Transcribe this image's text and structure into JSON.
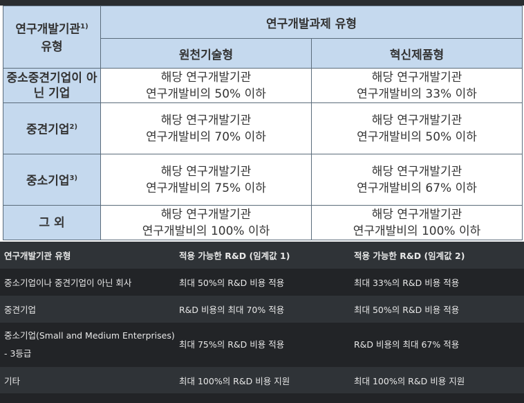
{
  "image_table": {
    "corner_header": "연구개발기관",
    "corner_header_sup": "1)",
    "corner_header_line2": "유형",
    "group_header": "연구개발과제 유형",
    "col_headers": [
      "원천기술형",
      "혁신제품형"
    ],
    "rows": [
      {
        "label": "중소중견기업이 아닌 기업",
        "sup": "",
        "cells": [
          [
            "해당 연구개발기관",
            "연구개발비의 50% 이하"
          ],
          [
            "해당 연구개발기관",
            "연구개발비의 33% 이하"
          ]
        ]
      },
      {
        "label": "중견기업",
        "sup": "2)",
        "cells": [
          [
            "해당 연구개발기관",
            "연구개발비의 70% 이하"
          ],
          [
            "해당 연구개발기관",
            "연구개발비의 50% 이하"
          ]
        ]
      },
      {
        "label": "중소기업",
        "sup": "3)",
        "cells": [
          [
            "해당 연구개발기관",
            "연구개발비의 75% 이하"
          ],
          [
            "해당 연구개발기관",
            "연구개발비의 67% 이하"
          ]
        ]
      },
      {
        "label": "그 외",
        "sup": "",
        "cells": [
          [
            "해당 연구개발기관",
            "연구개발비의 100% 이하"
          ],
          [
            "해당 연구개발기관",
            "연구개발비의 100% 이하"
          ]
        ]
      }
    ]
  },
  "dark_table": {
    "headers": [
      "연구개발기관 유형",
      "적용 가능한 R&D (임계값 1)",
      "적용 가능한 R&D (임계값 2)"
    ],
    "rows": [
      [
        "중소기업이나 중견기업이 아닌 회사",
        "최대 50%의 R&D 비용 적용",
        "최대 33%의 R&D 비용 적용"
      ],
      [
        "중견기업",
        "R&D 비용의 최대 70% 적용",
        "최대 50%의 R&D 비용 적용"
      ],
      [
        "중소기업(Small and Medium Enterprises)",
        "최대 75%의 R&D 비용 적용",
        "R&D 비용의 최대 67% 적용"
      ],
      [
        "기타",
        "최대 100%의 R&D 비용 지원",
        "최대 100%의 R&D 비용 지원"
      ]
    ],
    "row3_line2": "- 3등급"
  }
}
